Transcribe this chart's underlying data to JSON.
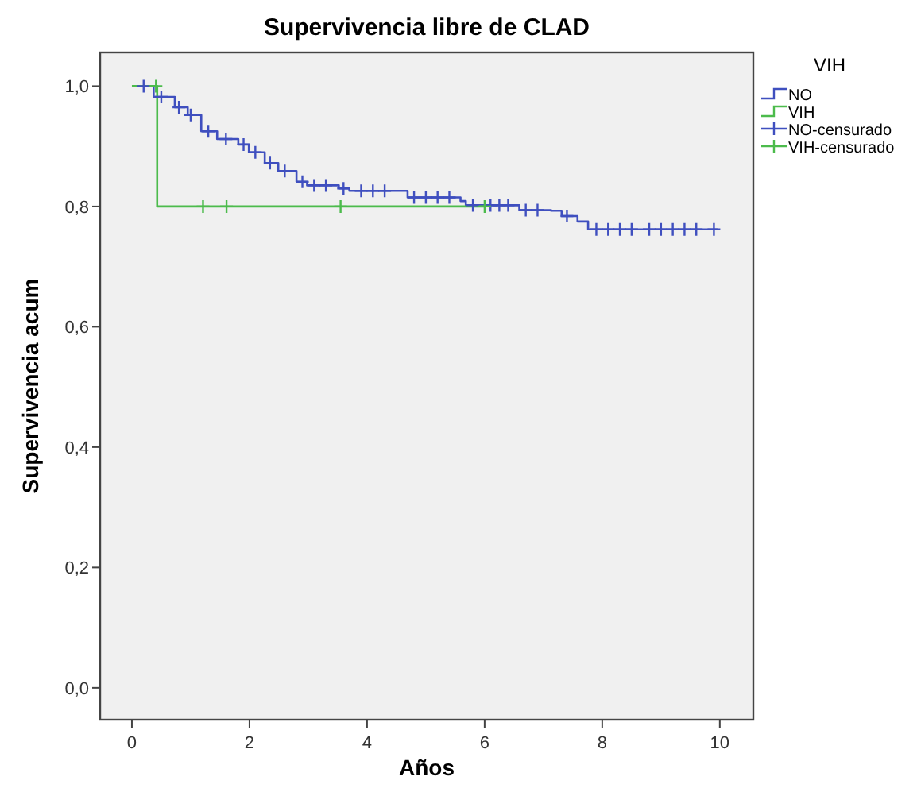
{
  "chart_data": {
    "type": "step",
    "title": "Supervivencia libre de CLAD",
    "xlabel": "Años",
    "ylabel": "Supervivencia acum",
    "legend_title": "VIH",
    "legend": "top right",
    "grid": false,
    "xlim": [
      -0.54,
      10.57
    ],
    "xticks": [
      0,
      2,
      4,
      6,
      8,
      10
    ],
    "ylim": [
      -0.053,
      1.056
    ],
    "yticks": [
      {
        "value": 0,
        "label": "0,0"
      },
      {
        "value": 0.2,
        "label": "0,2"
      },
      {
        "value": 0.4,
        "label": "0,4"
      },
      {
        "value": 0.6,
        "label": "0,6"
      },
      {
        "value": 0.8,
        "label": "0,8"
      },
      {
        "value": 1,
        "label": "1,0"
      }
    ],
    "series": [
      {
        "name": "NO",
        "color": "#3f4fbf",
        "x": [
          0.05,
          0.37,
          0.73,
          0.95,
          1.18,
          1.45,
          1.81,
          1.99,
          2.26,
          2.49,
          2.8,
          2.98,
          3.52,
          3.7,
          4.69,
          5.59,
          5.68,
          6.59,
          7.13,
          7.31,
          7.58,
          7.76,
          9.96
        ],
        "values": [
          1,
          0.982,
          0.965,
          0.952,
          0.925,
          0.912,
          0.903,
          0.89,
          0.872,
          0.859,
          0.841,
          0.835,
          0.83,
          0.826,
          0.815,
          0.809,
          0.802,
          0.794,
          0.793,
          0.784,
          0.775,
          0.762,
          0.762
        ]
      },
      {
        "name": "VIH",
        "color": "#4cbb4c",
        "x": [
          0,
          0.43,
          6.0
        ],
        "values": [
          1,
          0.8,
          0.8
        ]
      },
      {
        "name": "NO-censurado",
        "type": "scatter",
        "marker": "cross",
        "color": "#3f4fbf",
        "x": [
          0.2,
          0.5,
          0.8,
          1.0,
          1.3,
          1.6,
          1.9,
          2.1,
          2.35,
          2.6,
          2.9,
          3.1,
          3.3,
          3.6,
          3.9,
          4.1,
          4.3,
          4.8,
          5.0,
          5.2,
          5.4,
          5.8,
          6.1,
          6.25,
          6.4,
          6.7,
          6.9,
          7.4,
          7.9,
          8.1,
          8.3,
          8.5,
          8.8,
          9.0,
          9.2,
          9.4,
          9.6,
          9.9
        ],
        "values": [
          1,
          0.982,
          0.965,
          0.952,
          0.925,
          0.912,
          0.903,
          0.89,
          0.872,
          0.859,
          0.841,
          0.835,
          0.835,
          0.83,
          0.826,
          0.826,
          0.826,
          0.815,
          0.815,
          0.815,
          0.815,
          0.802,
          0.802,
          0.802,
          0.802,
          0.794,
          0.794,
          0.784,
          0.762,
          0.762,
          0.762,
          0.762,
          0.762,
          0.762,
          0.762,
          0.762,
          0.762,
          0.762
        ]
      },
      {
        "name": "VIH-censurado",
        "type": "scatter",
        "marker": "cross",
        "color": "#4cbb4c",
        "x": [
          0.41,
          1.21,
          1.61,
          3.55,
          6.0
        ],
        "values": [
          1,
          0.8,
          0.8,
          0.8,
          0.8
        ]
      }
    ]
  }
}
